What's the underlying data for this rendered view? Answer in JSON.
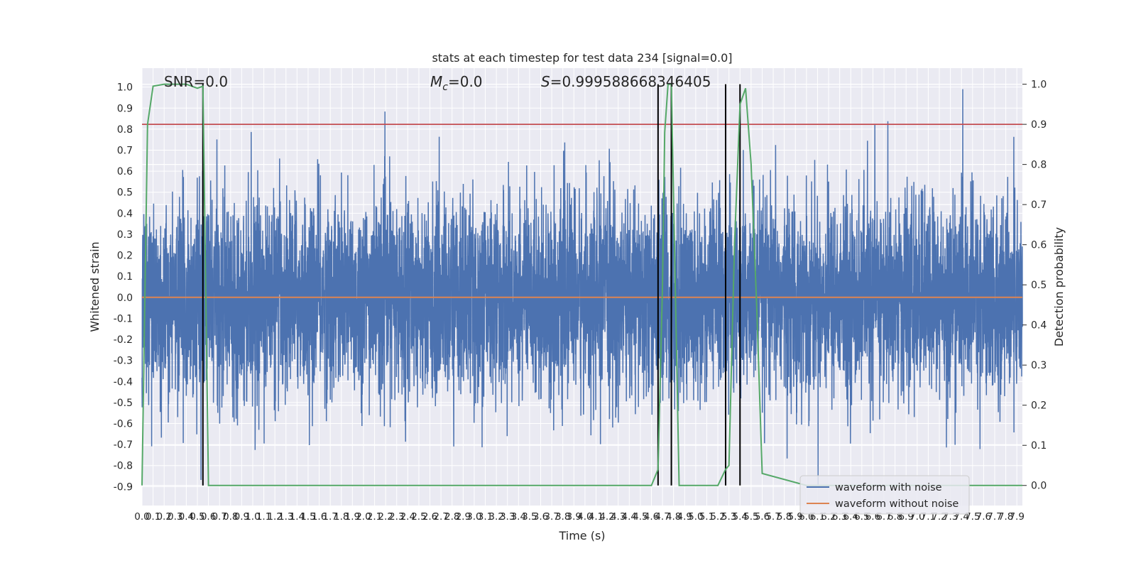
{
  "chart_data": {
    "type": "line",
    "title": "stats at each timestep for test data 234 [signal=0.0]",
    "xlabel": "Time (s)",
    "ylabel": "Whitened strain",
    "y2label": "Detection probability",
    "xlim": [
      0.0,
      7.95
    ],
    "ylim": [
      -0.99,
      1.09
    ],
    "y2lim": [
      -0.05,
      1.04
    ],
    "xticks": [
      0.0,
      0.1,
      0.2,
      0.3,
      0.4,
      0.5,
      0.6,
      0.7,
      0.8,
      0.9,
      1.0,
      1.1,
      1.2,
      1.3,
      1.4,
      1.5,
      1.6,
      1.7,
      1.8,
      1.9,
      2.0,
      2.1,
      2.2,
      2.3,
      2.4,
      2.5,
      2.6,
      2.7,
      2.8,
      2.9,
      3.0,
      3.1,
      3.2,
      3.3,
      3.4,
      3.5,
      3.6,
      3.7,
      3.8,
      3.9,
      4.0,
      4.1,
      4.2,
      4.3,
      4.4,
      4.5,
      4.6,
      4.7,
      4.8,
      4.9,
      5.0,
      5.1,
      5.2,
      5.3,
      5.4,
      5.5,
      5.6,
      5.7,
      5.8,
      5.9,
      6.0,
      6.1,
      6.2,
      6.3,
      6.4,
      6.5,
      6.6,
      6.7,
      6.8,
      6.9,
      7.0,
      7.1,
      7.2,
      7.3,
      7.4,
      7.5,
      7.6,
      7.7,
      7.8,
      7.9
    ],
    "yticks": [
      1.0,
      0.9,
      0.8,
      0.7,
      0.6,
      0.5,
      0.4,
      0.3,
      0.2,
      0.1,
      0.0,
      -0.1,
      -0.2,
      -0.3,
      -0.4,
      -0.5,
      -0.6,
      -0.7,
      -0.8,
      -0.9
    ],
    "y2ticks": [
      1.0,
      0.9,
      0.8,
      0.7,
      0.6,
      0.5,
      0.4,
      0.3,
      0.2,
      0.1,
      0.0
    ],
    "threshold": 0.9,
    "annotations": [
      {
        "text": "SNR=0.0",
        "x": 0.2
      },
      {
        "text_parts": [
          "M",
          "c",
          "=0.0"
        ],
        "x": 2.6
      },
      {
        "text_parts": [
          "S",
          "=0.999588668346405"
        ],
        "x": 3.6
      }
    ],
    "vlines": [
      0.55,
      4.66,
      4.78,
      5.27,
      5.4
    ],
    "series": [
      {
        "name": "waveform with noise",
        "color": "#4c72b0",
        "noise_amplitude": 0.42,
        "sample_interval": 0.00125
      },
      {
        "name": "waveform without noise",
        "color": "#dd8452",
        "values_constant": 0.0
      },
      {
        "color": "#55a868",
        "axis": "right",
        "x": [
          0.0,
          0.05,
          0.1,
          0.2,
          0.3,
          0.4,
          0.5,
          0.55,
          0.6,
          0.65,
          0.7,
          1.0,
          2.0,
          3.0,
          4.0,
          4.5,
          4.6,
          4.66,
          4.7,
          4.72,
          4.75,
          4.78,
          4.85,
          4.9,
          5.0,
          5.2,
          5.27,
          5.3,
          5.35,
          5.4,
          5.45,
          5.5,
          5.55,
          5.6,
          6.0,
          7.0,
          7.95
        ],
        "values": [
          0.0,
          0.9,
          0.995,
          1.0,
          1.0,
          1.0,
          0.99,
          0.995,
          0.0,
          0.0,
          0.0,
          0.0,
          0.0,
          0.0,
          0.0,
          0.0,
          0.0,
          0.04,
          0.5,
          0.88,
          1.0,
          1.0,
          0.0,
          0.0,
          0.0,
          0.0,
          0.04,
          0.05,
          0.6,
          0.95,
          0.99,
          0.8,
          0.45,
          0.03,
          0.0,
          0.0,
          0.0
        ]
      },
      {
        "name": "threshold",
        "color": "#c44e52",
        "axis": "right",
        "values_constant": 0.9
      }
    ],
    "legend": {
      "placement": "lower-right",
      "entries": [
        "waveform with noise",
        "waveform without noise"
      ]
    },
    "grid": true
  }
}
